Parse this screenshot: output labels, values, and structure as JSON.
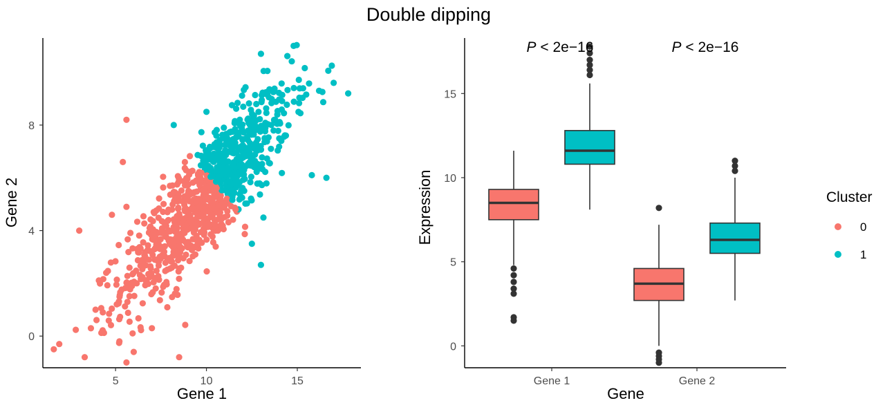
{
  "figure": {
    "title": "Double dipping"
  },
  "colors": {
    "cluster0": "#F8766D",
    "cluster1": "#00BFC4",
    "outline": "#333333",
    "outlier": "#333333"
  },
  "legend": {
    "title": "Cluster",
    "items": [
      {
        "label": "0",
        "color": "#F8766D"
      },
      {
        "label": "1",
        "color": "#00BFC4"
      }
    ]
  },
  "chart_data": [
    {
      "type": "scatter",
      "title": "",
      "xlabel": "Gene 1",
      "ylabel": "Gene 2",
      "xlim": [
        1.0,
        18.5
      ],
      "ylim": [
        -1.2,
        11.3
      ],
      "xticks": [
        5,
        10,
        15
      ],
      "yticks": [
        0,
        4,
        8
      ],
      "grid": false,
      "n_points": 1000,
      "series": [
        {
          "name": "0",
          "color": "#F8766D",
          "points_note_values": "approximate distribution; individual points generated around centroid",
          "center": [
            8.4,
            3.7
          ],
          "sample_points": [
            [
              1.6,
              -0.5
            ],
            [
              1.9,
              -0.3
            ],
            [
              3.3,
              -0.8
            ],
            [
              3.0,
              4.0
            ],
            [
              5.6,
              8.2
            ],
            [
              5.4,
              6.6
            ],
            [
              5.6,
              4.9
            ],
            [
              4.8,
              4.6
            ],
            [
              6.0,
              -0.6
            ],
            [
              8.5,
              -0.8
            ],
            [
              5.6,
              -1.0
            ],
            [
              7.0,
              0.3
            ],
            [
              4.3,
              0.9
            ],
            [
              3.9,
              1.0
            ]
          ]
        },
        {
          "name": "1",
          "color": "#00BFC4",
          "center": [
            12.4,
            7.2
          ],
          "sample_points": [
            [
              8.2,
              8.0
            ],
            [
              10.0,
              8.5
            ],
            [
              13.0,
              10.7
            ],
            [
              14.8,
              11.0
            ],
            [
              16.2,
              9.3
            ],
            [
              17.8,
              9.2
            ],
            [
              17.0,
              9.6
            ],
            [
              15.8,
              6.1
            ],
            [
              16.6,
              6.0
            ],
            [
              13.0,
              2.7
            ],
            [
              12.5,
              3.5
            ],
            [
              11.6,
              5.9
            ]
          ]
        }
      ]
    },
    {
      "type": "box",
      "title": "",
      "xlabel": "Gene",
      "ylabel": "Expression",
      "categories": [
        "Gene 1",
        "Gene 2"
      ],
      "ylim": [
        -1.3,
        18.3
      ],
      "yticks": [
        0,
        5,
        10,
        15
      ],
      "grid": false,
      "annotations": [
        {
          "category": "Gene 1",
          "p_symbol": "P",
          "p_value": " < 2e−16"
        },
        {
          "category": "Gene 2",
          "p_symbol": "P",
          "p_value": " < 2e−16"
        }
      ],
      "series": [
        {
          "name": "0",
          "color": "#F8766D",
          "boxes": [
            {
              "category": "Gene 1",
              "q1": 7.5,
              "median": 8.5,
              "q3": 9.3,
              "whisker_low": 4.8,
              "whisker_high": 11.6,
              "outliers": [
                4.6,
                4.2,
                3.8,
                3.4,
                3.1,
                1.7,
                1.5
              ]
            },
            {
              "category": "Gene 2",
              "q1": 2.7,
              "median": 3.7,
              "q3": 4.6,
              "whisker_low": 0.0,
              "whisker_high": 7.2,
              "outliers": [
                8.2,
                -0.4,
                -0.6,
                -0.8,
                -1.0
              ]
            }
          ]
        },
        {
          "name": "1",
          "color": "#00BFC4",
          "boxes": [
            {
              "category": "Gene 1",
              "q1": 10.8,
              "median": 11.6,
              "q3": 12.8,
              "whisker_low": 8.1,
              "whisker_high": 15.6,
              "outliers": [
                16.1,
                16.4,
                16.7,
                17.0,
                17.4,
                17.8
              ]
            },
            {
              "category": "Gene 2",
              "q1": 5.5,
              "median": 6.3,
              "q3": 7.3,
              "whisker_low": 2.7,
              "whisker_high": 10.0,
              "outliers": [
                10.4,
                10.7,
                11.0
              ]
            }
          ]
        }
      ]
    }
  ]
}
